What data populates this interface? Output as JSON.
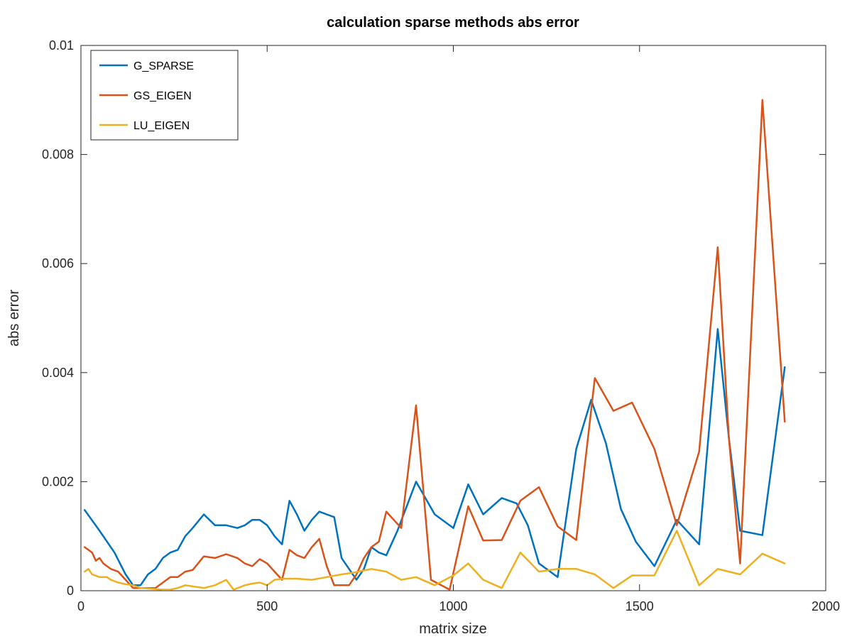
{
  "chart_data": {
    "type": "line",
    "title": "calculation sparse methods abs error",
    "xlabel": "matrix size",
    "ylabel": "abs error",
    "xlim": [
      0,
      2000
    ],
    "ylim": [
      0,
      0.01
    ],
    "xticks": [
      0,
      500,
      1000,
      1500,
      2000
    ],
    "xtick_labels": [
      "0",
      "500",
      "1000",
      "1500",
      "2000"
    ],
    "yticks": [
      0,
      0.002,
      0.004,
      0.006,
      0.008,
      0.01
    ],
    "ytick_labels": [
      "0",
      "0.002",
      "0.004",
      "0.006",
      "0.008",
      "0.01"
    ],
    "grid": false,
    "legend_position": "top-left",
    "series": [
      {
        "name": "G_SPARSE",
        "color": "#0072BD",
        "x": [
          10,
          50,
          90,
          120,
          140,
          160,
          180,
          200,
          220,
          240,
          260,
          280,
          300,
          330,
          360,
          390,
          420,
          440,
          460,
          480,
          500,
          520,
          540,
          560,
          580,
          600,
          620,
          640,
          660,
          680,
          700,
          720,
          740,
          760,
          780,
          800,
          820,
          850,
          900,
          950,
          1000,
          1040,
          1080,
          1130,
          1170,
          1200,
          1230,
          1280,
          1330,
          1370,
          1410,
          1450,
          1490,
          1540,
          1600,
          1660,
          1710,
          1740,
          1770,
          1830,
          1890
        ],
        "y": [
          0.00148,
          0.0011,
          0.0007,
          0.0003,
          0.0001,
          0.0001,
          0.0003,
          0.0004,
          0.0006,
          0.0007,
          0.00075,
          0.001,
          0.00115,
          0.0014,
          0.0012,
          0.0012,
          0.00115,
          0.0012,
          0.0013,
          0.0013,
          0.0012,
          0.001,
          0.00085,
          0.00165,
          0.0014,
          0.0011,
          0.0013,
          0.00145,
          0.0014,
          0.00135,
          0.0006,
          0.0004,
          0.0002,
          0.0004,
          0.0008,
          0.0007,
          0.00065,
          0.0011,
          0.002,
          0.0014,
          0.00115,
          0.00195,
          0.0014,
          0.0017,
          0.0016,
          0.0012,
          0.0005,
          0.00025,
          0.0026,
          0.0035,
          0.0027,
          0.0015,
          0.0009,
          0.00045,
          0.0013,
          0.00085,
          0.0048,
          0.0028,
          0.0011,
          0.00102,
          0.0041
        ]
      },
      {
        "name": "GS_EIGEN",
        "color": "#D95319",
        "x": [
          10,
          30,
          40,
          50,
          60,
          80,
          100,
          120,
          140,
          160,
          180,
          200,
          220,
          240,
          260,
          280,
          300,
          330,
          360,
          390,
          420,
          440,
          460,
          480,
          500,
          520,
          540,
          560,
          580,
          600,
          620,
          640,
          660,
          680,
          700,
          720,
          740,
          760,
          780,
          800,
          820,
          860,
          900,
          940,
          990,
          1040,
          1080,
          1130,
          1180,
          1230,
          1280,
          1330,
          1380,
          1430,
          1480,
          1540,
          1600,
          1660,
          1710,
          1740,
          1770,
          1830,
          1890
        ],
        "y": [
          0.0008,
          0.0007,
          0.00055,
          0.0006,
          0.0005,
          0.0004,
          0.00035,
          0.0002,
          5e-05,
          5e-05,
          5e-05,
          5e-05,
          0.00015,
          0.00025,
          0.00025,
          0.00035,
          0.00038,
          0.00063,
          0.0006,
          0.00067,
          0.0006,
          0.0005,
          0.00045,
          0.00058,
          0.0005,
          0.00035,
          0.0002,
          0.00075,
          0.00065,
          0.0006,
          0.0008,
          0.00095,
          0.00045,
          0.0001,
          0.0001,
          0.0001,
          0.0003,
          0.0006,
          0.0008,
          0.0009,
          0.00145,
          0.00115,
          0.0034,
          0.0002,
          2e-05,
          0.00155,
          0.00092,
          0.00093,
          0.00165,
          0.0019,
          0.00118,
          0.00093,
          0.0039,
          0.0033,
          0.00345,
          0.0026,
          0.0012,
          0.00255,
          0.0063,
          0.0028,
          0.0005,
          0.009,
          0.0031
        ]
      },
      {
        "name": "LU_EIGEN",
        "color": "#EDB120",
        "x": [
          10,
          20,
          30,
          50,
          70,
          80,
          100,
          120,
          140,
          160,
          180,
          200,
          220,
          240,
          260,
          280,
          300,
          330,
          360,
          390,
          410,
          440,
          460,
          480,
          500,
          520,
          540,
          560,
          580,
          620,
          660,
          700,
          730,
          780,
          820,
          860,
          900,
          950,
          1000,
          1040,
          1080,
          1130,
          1180,
          1230,
          1280,
          1330,
          1380,
          1430,
          1480,
          1540,
          1600,
          1660,
          1710,
          1770,
          1830,
          1890
        ],
        "y": [
          0.00035,
          0.0004,
          0.0003,
          0.00025,
          0.00025,
          0.0002,
          0.00015,
          0.00012,
          0.0001,
          5e-05,
          4e-05,
          3e-05,
          2e-05,
          2e-05,
          5e-05,
          0.0001,
          8e-05,
          5e-05,
          0.0001,
          0.0002,
          2e-05,
          0.0001,
          0.00013,
          0.00015,
          0.0001,
          0.0002,
          0.00022,
          0.00022,
          0.00022,
          0.0002,
          0.00025,
          0.0003,
          0.00033,
          0.0004,
          0.00035,
          0.0002,
          0.00025,
          0.0001,
          0.00028,
          0.0005,
          0.0002,
          5e-05,
          0.0007,
          0.00035,
          0.0004,
          0.0004,
          0.0003,
          5e-05,
          0.00028,
          0.00028,
          0.0011,
          0.0001,
          0.0004,
          0.0003,
          0.00068,
          0.0005
        ]
      }
    ]
  }
}
